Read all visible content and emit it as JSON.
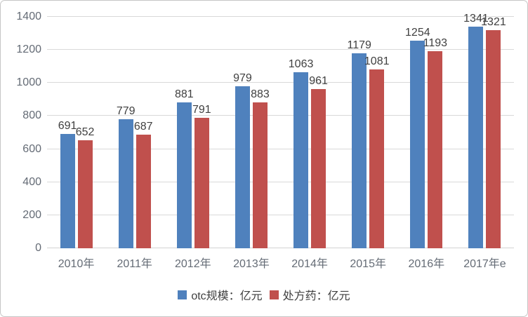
{
  "chart_data": {
    "type": "bar",
    "categories": [
      "2010年",
      "2011年",
      "2012年",
      "2013年",
      "2014年",
      "2015年",
      "2016年",
      "2017年e"
    ],
    "series": [
      {
        "key": "otc",
        "name": "otc规模：亿元",
        "color": "#4f81bd",
        "values": [
          691,
          779,
          881,
          979,
          1063,
          1179,
          1254,
          1341
        ]
      },
      {
        "key": "rx",
        "name": "处方药：亿元",
        "color": "#c0504d",
        "values": [
          652,
          687,
          791,
          883,
          961,
          1081,
          1193,
          1321
        ]
      }
    ],
    "title": "",
    "xlabel": "",
    "ylabel": "",
    "ylim": [
      0,
      1400
    ],
    "yticks": [
      0,
      200,
      400,
      600,
      800,
      1000,
      1200,
      1400
    ],
    "grid": true,
    "data_labels": true,
    "legend_position": "bottom"
  },
  "colors": {
    "gridline": "#d9d9d9",
    "axis_text": "#646b75",
    "data_label_text": "#3f3f3f",
    "background": "#ffffff",
    "border": "#c6c6c6"
  }
}
